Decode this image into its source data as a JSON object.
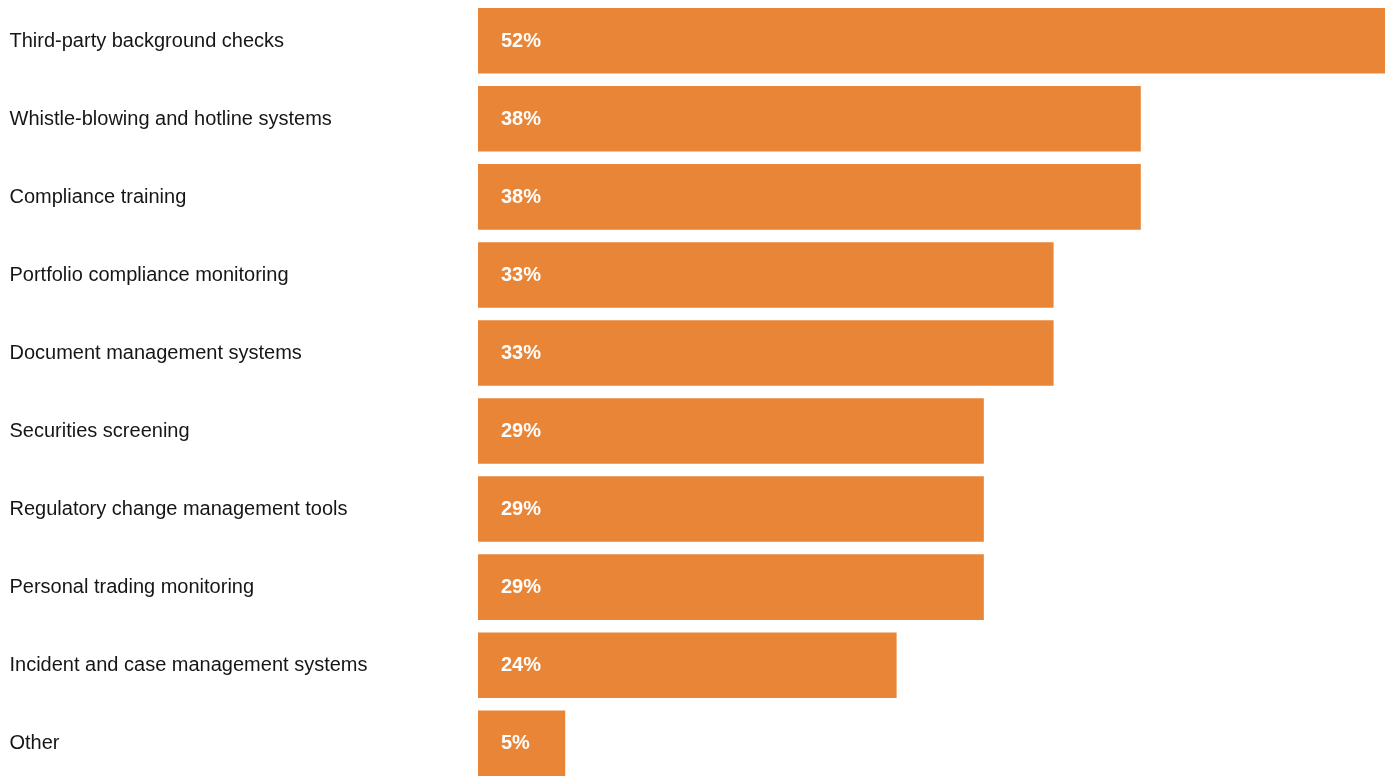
{
  "chart_data": {
    "type": "bar",
    "orientation": "horizontal",
    "categories": [
      "Third-party background checks",
      "Whistle-blowing and hotline systems",
      "Compliance training",
      "Portfolio compliance monitoring",
      "Document management systems",
      "Securities screening",
      "Regulatory change management tools",
      "Personal trading monitoring",
      "Incident and case management systems",
      "Other"
    ],
    "values": [
      52,
      38,
      38,
      33,
      33,
      29,
      29,
      29,
      24,
      5
    ],
    "value_labels": [
      "52%",
      "38%",
      "38%",
      "33%",
      "33%",
      "29%",
      "29%",
      "29%",
      "24%",
      "5%"
    ],
    "color": "#e98536"
  }
}
